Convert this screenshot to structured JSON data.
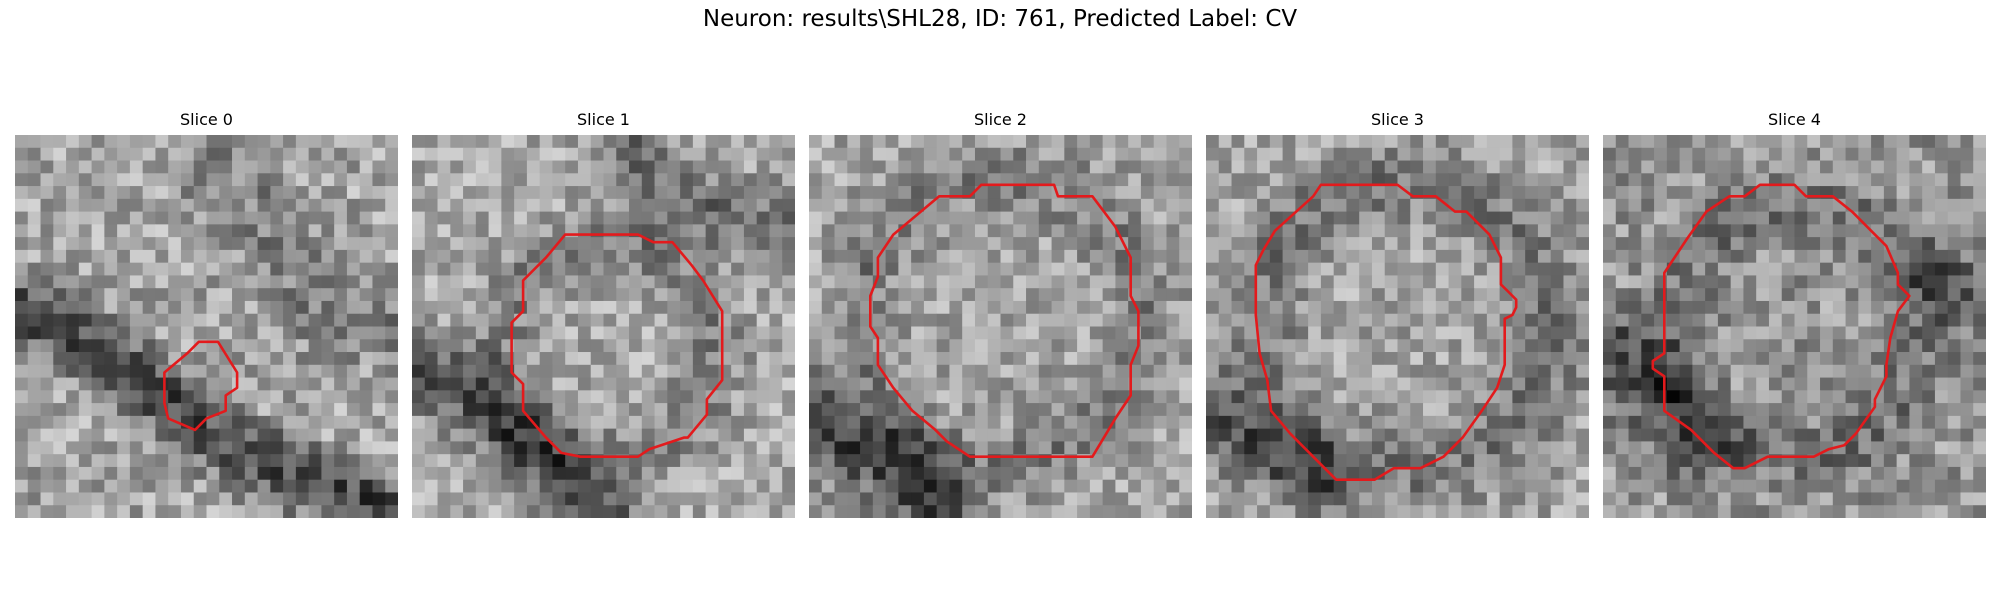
{
  "figure": {
    "title": "Neuron: results\\SHL28, ID: 761, Predicted Label: CV",
    "outline_color": "#e31a1c"
  },
  "panels": [
    {
      "label": "Slice 0"
    },
    {
      "label": "Slice 1"
    },
    {
      "label": "Slice 2"
    },
    {
      "label": "Slice 3"
    },
    {
      "label": "Slice 4"
    }
  ]
}
